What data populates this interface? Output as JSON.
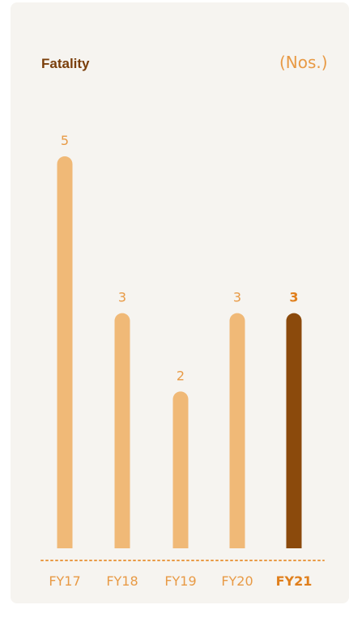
{
  "header": {
    "title": "Fatality",
    "unit": "(Nos.)"
  },
  "colors": {
    "bar": "#f0b977",
    "highlight_bar": "#8b4a0c",
    "label": "#e89a45",
    "title": "#7a3e0a",
    "baseline": "#e89a45"
  },
  "chart_data": {
    "type": "bar",
    "title": "Fatality",
    "ylabel": "(Nos.)",
    "categories": [
      "FY17",
      "FY18",
      "FY19",
      "FY20",
      "FY21"
    ],
    "values": [
      5,
      3,
      2,
      3,
      3
    ],
    "highlight_index": 4,
    "ylim": [
      0,
      5
    ],
    "grid": false
  }
}
